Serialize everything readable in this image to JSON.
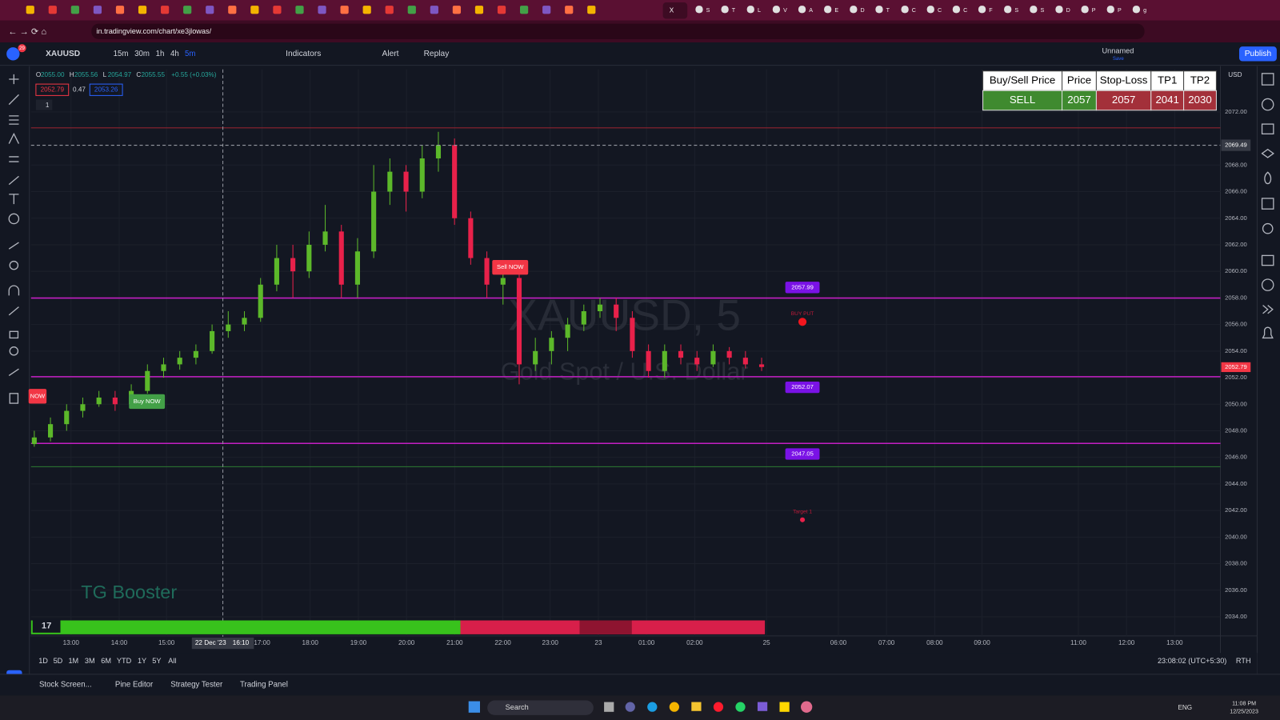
{
  "browser": {
    "tabs": [
      "S",
      "T",
      "L",
      "V",
      "A",
      "E",
      "D",
      "T",
      "C",
      "C",
      "C",
      "F",
      "S",
      "S",
      "D",
      "P",
      "P",
      "g"
    ],
    "active_tab": "X",
    "url": "in.tradingview.com/chart/xe3jlowas/"
  },
  "toolbar": {
    "notifications": "29",
    "symbol": "XAUUSD",
    "intervals": [
      "15m",
      "30m",
      "1h",
      "4h",
      "5m"
    ],
    "indicators": "Indicators",
    "alert": "Alert",
    "replay": "Replay",
    "layout_name": "Unnamed",
    "layout_status": "Save",
    "publish": "Publish"
  },
  "legend": {
    "ohlc": [
      {
        "key": "O",
        "value": "2055.00"
      },
      {
        "key": "H",
        "value": "2055.56"
      },
      {
        "key": "L",
        "value": "2054.97"
      },
      {
        "key": "C",
        "value": "2055.55"
      }
    ],
    "change": "+0.55 (+0.03%)",
    "bid": "2052.79",
    "spread": "0.47",
    "ask": "2053.26",
    "indicator_count": "1"
  },
  "signal_table": {
    "headers": [
      "Buy/Sell Price",
      "Price",
      "Stop-Loss",
      "TP1",
      "TP2"
    ],
    "row": [
      "SELL",
      "2057",
      "2057",
      "2041",
      "2030"
    ]
  },
  "chart_data": {
    "type": "candlestick",
    "symbol_watermark": "XAUUSD, 5",
    "description_watermark": "Gold Spot / U.S. Dollar",
    "brand_watermark": "TG Booster",
    "currency": "USD",
    "up_color": "#5cb82a",
    "down_color": "#e8214a",
    "candles": [
      [
        2047,
        2048,
        2046.8,
        2047.5
      ],
      [
        2047.5,
        2049,
        2047.2,
        2048.5
      ],
      [
        2048.5,
        2050,
        2048,
        2049.5
      ],
      [
        2049.5,
        2050.5,
        2049,
        2050
      ],
      [
        2050,
        2051,
        2049.8,
        2050.5
      ],
      [
        2050.5,
        2051,
        2049.5,
        2050
      ],
      [
        2050,
        2051.5,
        2049.8,
        2051
      ],
      [
        2051,
        2053,
        2050.8,
        2052.5
      ],
      [
        2052.5,
        2053.5,
        2052,
        2053
      ],
      [
        2053,
        2054,
        2052.6,
        2053.5
      ],
      [
        2053.5,
        2054.5,
        2053,
        2054
      ],
      [
        2054,
        2056,
        2053.8,
        2055.5
      ],
      [
        2055.5,
        2057,
        2055,
        2056
      ],
      [
        2056,
        2057,
        2055.5,
        2056.5
      ],
      [
        2056.5,
        2059.5,
        2056.2,
        2059
      ],
      [
        2059,
        2062,
        2058.5,
        2061
      ],
      [
        2061,
        2062,
        2058,
        2060
      ],
      [
        2060,
        2063,
        2059.5,
        2062
      ],
      [
        2062,
        2065,
        2061.5,
        2063
      ],
      [
        2063,
        2063.5,
        2058,
        2059
      ],
      [
        2059,
        2062.5,
        2058,
        2061.5
      ],
      [
        2061.5,
        2068,
        2061,
        2066
      ],
      [
        2066,
        2068.5,
        2065,
        2067.5
      ],
      [
        2067.5,
        2068,
        2064.5,
        2066
      ],
      [
        2066,
        2069.5,
        2065.5,
        2068.5
      ],
      [
        2068.5,
        2070.5,
        2067.5,
        2069.5
      ],
      [
        2069.5,
        2070,
        2063.5,
        2064
      ],
      [
        2064,
        2064.5,
        2060.5,
        2061
      ],
      [
        2061,
        2061.5,
        2058,
        2059
      ],
      [
        2059,
        2060.5,
        2057.5,
        2059.5
      ],
      [
        2059.5,
        2060,
        2051.5,
        2053
      ],
      [
        2053,
        2055,
        2052.5,
        2054
      ],
      [
        2054,
        2055.5,
        2053,
        2055
      ],
      [
        2055,
        2056.5,
        2054,
        2056
      ],
      [
        2056,
        2057.5,
        2055.5,
        2057
      ],
      [
        2057,
        2058,
        2056.5,
        2057.5
      ],
      [
        2057.5,
        2058,
        2055.5,
        2056.5
      ],
      [
        2056.5,
        2057,
        2053.5,
        2054
      ],
      [
        2054,
        2054.5,
        2052,
        2052.5
      ],
      [
        2052.5,
        2054.5,
        2052,
        2054
      ],
      [
        2054,
        2054.5,
        2053,
        2053.5
      ],
      [
        2053.5,
        2054,
        2052.5,
        2053
      ],
      [
        2053,
        2054.5,
        2052.8,
        2054
      ],
      [
        2054,
        2054.3,
        2053,
        2053.5
      ],
      [
        2053.5,
        2054,
        2052.7,
        2053
      ],
      [
        2053,
        2053.5,
        2052.5,
        2052.8
      ]
    ],
    "ylim": [
      2032.5,
      2075.2
    ],
    "yticks": [
      {
        "value": 2034,
        "label": "2034.00"
      },
      {
        "value": 2036,
        "label": "2036.00"
      },
      {
        "value": 2038,
        "label": "2038.00"
      },
      {
        "value": 2040,
        "label": "2040.00"
      },
      {
        "value": 2042,
        "label": "2042.00"
      },
      {
        "value": 2044,
        "label": "2044.00"
      },
      {
        "value": 2046,
        "label": "2046.00"
      },
      {
        "value": 2048,
        "label": "2048.00"
      },
      {
        "value": 2050,
        "label": "2050.00"
      },
      {
        "value": 2052,
        "label": "2052.00"
      },
      {
        "value": 2054,
        "label": "2054.00"
      },
      {
        "value": 2056,
        "label": "2056.00"
      },
      {
        "value": 2058,
        "label": "2058.00"
      },
      {
        "value": 2060,
        "label": "2060.00"
      },
      {
        "value": 2062,
        "label": "2062.00"
      },
      {
        "value": 2064,
        "label": "2064.00"
      },
      {
        "value": 2066,
        "label": "2066.00"
      },
      {
        "value": 2068,
        "label": "2068.00"
      },
      {
        "value": 2072,
        "label": "2072.00"
      }
    ],
    "xticks": [
      "13:00",
      "14:00",
      "15:00",
      "17:00",
      "18:00",
      "19:00",
      "20:00",
      "21:00",
      "22:00",
      "23:00",
      "23",
      "01:00",
      "02:00",
      "25",
      "06:00",
      "07:00",
      "08:00",
      "09:00",
      "11:00",
      "12:00",
      "13:00"
    ],
    "grid": true,
    "crosshair": {
      "date": "22 Dec '23",
      "time": "16:10",
      "price": 2069.49
    },
    "last_price": 2052.79,
    "levels": [
      {
        "value": 2057.99,
        "color": "#c41fc4",
        "label_color": "#7a12e6"
      },
      {
        "value": 2052.07,
        "color": "#c41fc4",
        "label_color": "#7a12e6"
      },
      {
        "value": 2047.05,
        "color": "#c41fc4",
        "label_color": "#7a12e6"
      }
    ],
    "lines": [
      {
        "value": 2070.8,
        "color": "#8f2330"
      },
      {
        "value": 2045.3,
        "color": "#2e7d32"
      }
    ],
    "signals": [
      {
        "text": "Sell NOW",
        "price": 2060.3,
        "color": "#f23645"
      },
      {
        "text": "Buy NOW",
        "price": 2050.2,
        "color": "#43a047"
      },
      {
        "text": "NOW",
        "price": 2050.6,
        "color": "#f23645"
      }
    ],
    "targets": [
      {
        "text": "BUY PUT",
        "price": 2056.2
      },
      {
        "text": "Target 1",
        "price": 2041.3
      }
    ]
  },
  "bottom_bar": {
    "ranges": [
      "1D",
      "5D",
      "1M",
      "3M",
      "6M",
      "YTD",
      "1Y",
      "5Y",
      "All"
    ],
    "clock": "23:08:02 (UTC+5:30)",
    "session": "RTH"
  },
  "panels": [
    "Stock Screen...",
    "Pine Editor",
    "Strategy Tester",
    "Trading Panel"
  ],
  "taskbar": {
    "search": "Search",
    "language": "ENG",
    "time": "11:08 PM",
    "date": "12/25/2023"
  }
}
